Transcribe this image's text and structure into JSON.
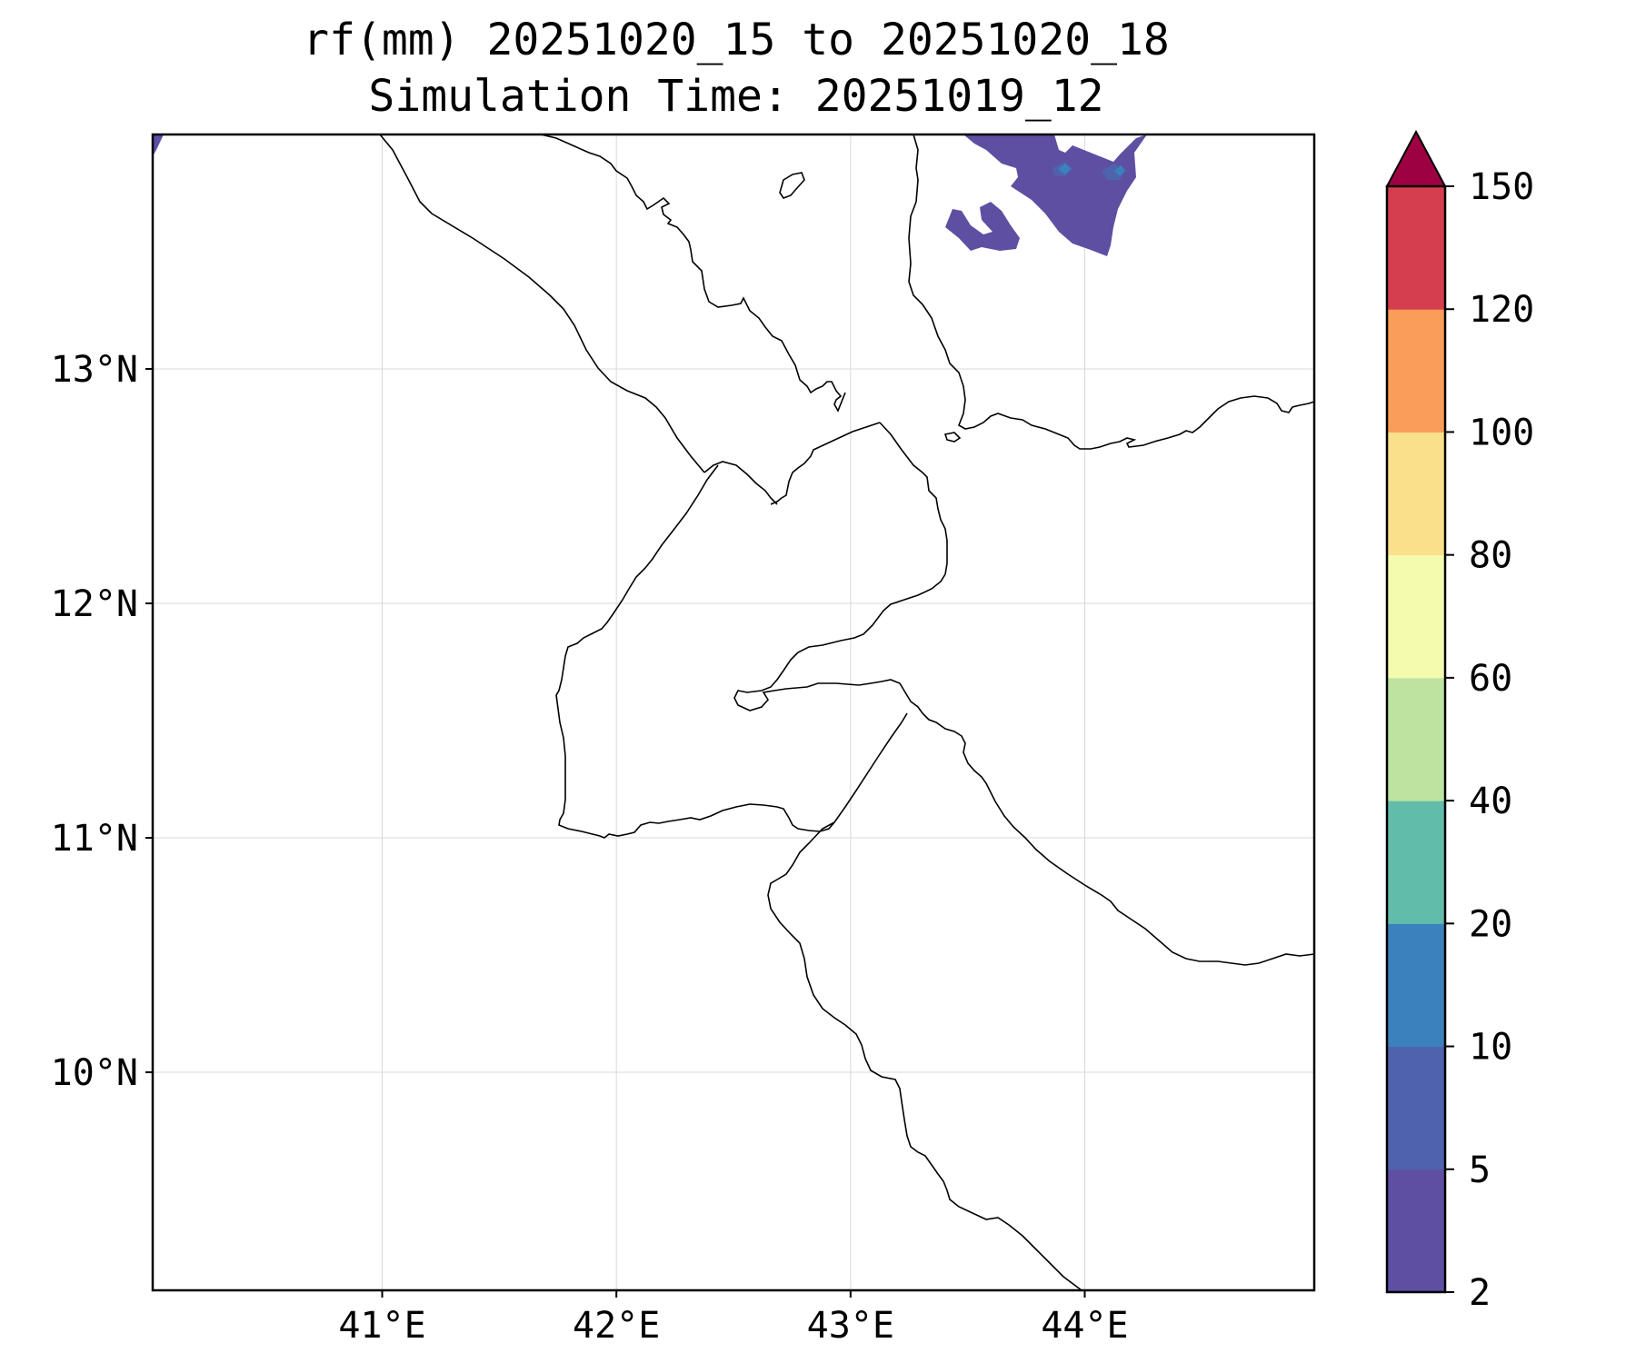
{
  "title": {
    "line1": "rf(mm) 20251020_15 to 20251020_18",
    "line2": "Simulation Time: 20251019_12"
  },
  "map": {
    "lon_range": [
      40.02,
      44.98
    ],
    "lat_range": [
      9.07,
      14.0
    ],
    "lon_ticks": [
      {
        "value": 41,
        "label": "41°E"
      },
      {
        "value": 42,
        "label": "42°E"
      },
      {
        "value": 43,
        "label": "43°E"
      },
      {
        "value": 44,
        "label": "44°E"
      }
    ],
    "lat_ticks": [
      {
        "value": 10,
        "label": "10°N"
      },
      {
        "value": 11,
        "label": "11°N"
      },
      {
        "value": 12,
        "label": "12°N"
      },
      {
        "value": 13,
        "label": "13°N"
      }
    ],
    "grid": true
  },
  "colorbar": {
    "levels": [
      "2",
      "5",
      "10",
      "20",
      "40",
      "60",
      "80",
      "100",
      "120",
      "150"
    ],
    "colors": [
      "#5e4fa2",
      "#4f63ad",
      "#3a82bd",
      "#62bcaa",
      "#bde3a0",
      "#f4faae",
      "#fbe08b",
      "#f99d58",
      "#d53e4f"
    ],
    "extend_color": "#9e0142",
    "extend": "max"
  }
}
